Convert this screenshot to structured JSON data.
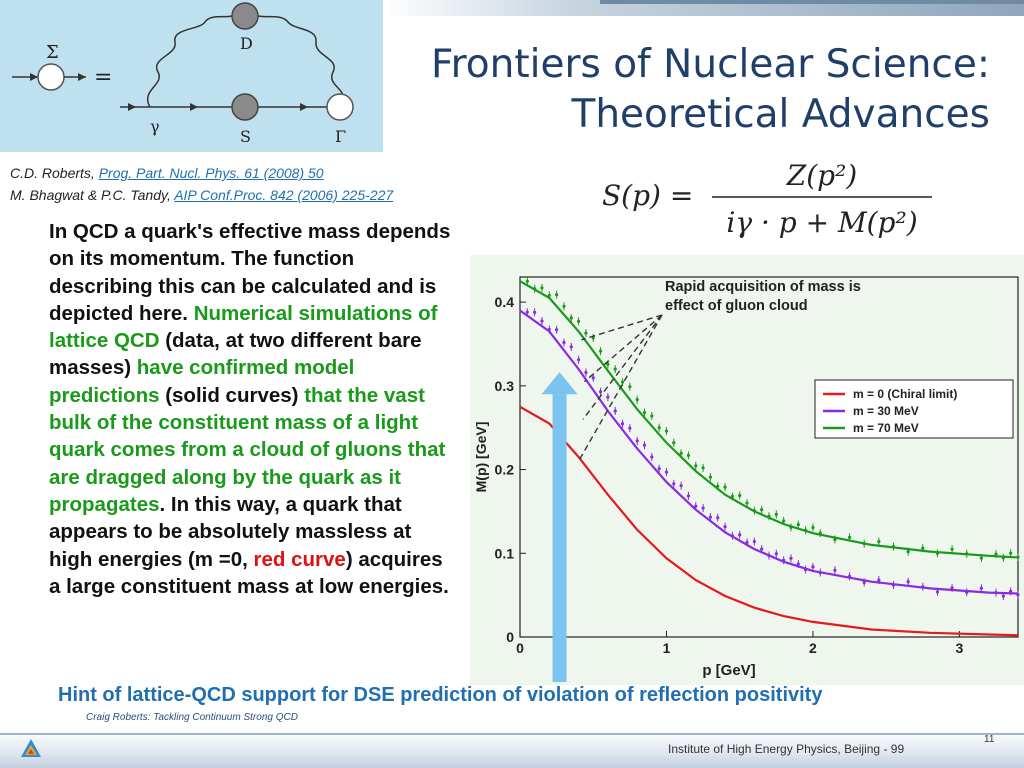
{
  "diagram": {
    "sigma": "Σ",
    "equals": "=",
    "D": "D",
    "gamma": "γ",
    "S": "S",
    "Gamma": "Γ"
  },
  "title": {
    "line1": "Frontiers of Nuclear Science:",
    "line2": "Theoretical Advances"
  },
  "refs": [
    {
      "authors": "C.D. Roberts, ",
      "link": "Prog. Part. Nucl. Phys. 61 (2008) 50"
    },
    {
      "authors": "M. Bhagwat & P.C. Tandy, ",
      "link": "AIP Conf.Proc. 842 (2006) 225-227"
    }
  ],
  "formula": {
    "lhs": "S(p) =",
    "numerator": "Z(p²)",
    "denominator": "iγ · p + M(p²)"
  },
  "body": {
    "t1": "In QCD a quark's effective mass depends on its momentum. The function describing this can be calculated and is depicted here. ",
    "g1": "Numerical simulations of lattice QCD",
    "t2": " (data, at two different bare masses) ",
    "g2": "have confirmed model predictions",
    "t3": " (solid curves) ",
    "g3": "that the vast bulk of the constituent mass of a light quark comes from a cloud of gluons that are dragged along by the quark as it propagates",
    "t4": ". In this way, a quark that appears to be absolutely massless at high energies (m =0, ",
    "r1": "red curve",
    "t5": ") acquires a large constituent mass at low energies."
  },
  "chart_data": {
    "type": "line",
    "xlabel": "p [GeV]",
    "ylabel": "M(p) [GeV]",
    "xlim": [
      0,
      3.4
    ],
    "ylim": [
      0,
      0.43
    ],
    "xticks": [
      "0",
      "1",
      "2",
      "3"
    ],
    "yticks": [
      "0",
      "0.1",
      "0.2",
      "0.3",
      "0.4"
    ],
    "annotation": "Rapid acquisition of mass is effect of gluon cloud",
    "legend_position": "right",
    "series": [
      {
        "name": "m = 0 (Chiral limit)",
        "color": "#e41a1c",
        "x": [
          0,
          0.2,
          0.4,
          0.6,
          0.8,
          1.0,
          1.2,
          1.4,
          1.6,
          1.8,
          2.0,
          2.4,
          2.8,
          3.2,
          3.4
        ],
        "y": [
          0.275,
          0.255,
          0.215,
          0.17,
          0.128,
          0.094,
          0.068,
          0.049,
          0.035,
          0.025,
          0.018,
          0.009,
          0.005,
          0.003,
          0.002
        ]
      },
      {
        "name": "m = 30 MeV",
        "color": "#8a2be2",
        "x": [
          0,
          0.2,
          0.4,
          0.6,
          0.8,
          1.0,
          1.2,
          1.4,
          1.6,
          1.8,
          2.0,
          2.4,
          2.8,
          3.2,
          3.4
        ],
        "y": [
          0.39,
          0.365,
          0.32,
          0.27,
          0.225,
          0.185,
          0.152,
          0.125,
          0.105,
          0.09,
          0.079,
          0.066,
          0.058,
          0.053,
          0.052
        ]
      },
      {
        "name": "m = 70 MeV",
        "color": "#1a9a1a",
        "x": [
          0,
          0.2,
          0.4,
          0.6,
          0.8,
          1.0,
          1.2,
          1.4,
          1.6,
          1.8,
          2.0,
          2.4,
          2.8,
          3.2,
          3.4
        ],
        "y": [
          0.425,
          0.405,
          0.365,
          0.318,
          0.272,
          0.232,
          0.198,
          0.17,
          0.15,
          0.135,
          0.124,
          0.11,
          0.102,
          0.097,
          0.095
        ]
      }
    ]
  },
  "caption": "Hint of lattice-QCD support for DSE prediction of violation of reflection positivity",
  "credit": "Craig Roberts: Tackling Continuum Strong QCD",
  "footer": {
    "institute": "Institute of High Energy Physics, Beijing - 99",
    "page": "11"
  },
  "colors": {
    "title": "#1f3f6a",
    "green": "#1a9a1a",
    "red": "#e01010",
    "caption": "#1f6fb2",
    "arrow": "#7cc4f0"
  }
}
